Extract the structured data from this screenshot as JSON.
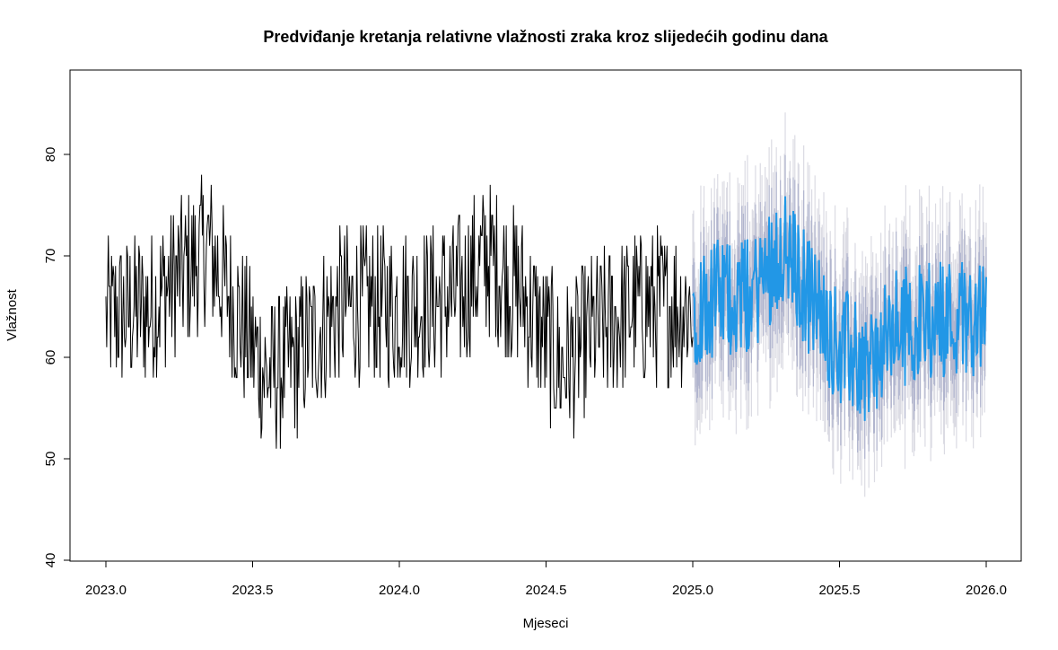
{
  "chart_data": {
    "type": "line",
    "title": "Predviđanje kretanja relativne vlažnosti zraka kroz slijedećih godinu dana",
    "xlabel": "Mjeseci",
    "ylabel": "Vlažnost",
    "xlim": [
      2023.0,
      2026.0
    ],
    "ylim": [
      40,
      85
    ],
    "x_ticks": [
      "2023.0",
      "2023.5",
      "2024.0",
      "2024.5",
      "2025.0",
      "2025.5",
      "2026.0"
    ],
    "y_ticks": [
      "40",
      "50",
      "60",
      "70",
      "80"
    ],
    "observed": {
      "x_start": 2023.0,
      "x_end": 2025.0,
      "level_profile": [
        [
          2023.0,
          64
        ],
        [
          2023.15,
          65
        ],
        [
          2023.35,
          71
        ],
        [
          2023.42,
          66
        ],
        [
          2023.55,
          58
        ],
        [
          2023.65,
          60
        ],
        [
          2023.8,
          65
        ],
        [
          2024.0,
          65
        ],
        [
          2024.2,
          66
        ],
        [
          2024.3,
          70
        ],
        [
          2024.42,
          66
        ],
        [
          2024.55,
          59
        ],
        [
          2024.65,
          62
        ],
        [
          2024.8,
          65
        ],
        [
          2025.0,
          65
        ]
      ],
      "amplitude": 8,
      "min": 50,
      "max": 80,
      "color": "#000000"
    },
    "forecast": {
      "x_start": 2025.0,
      "x_end": 2026.0,
      "mean_profile": [
        [
          2025.0,
          65
        ],
        [
          2025.1,
          66
        ],
        [
          2025.2,
          66
        ],
        [
          2025.3,
          71
        ],
        [
          2025.4,
          66
        ],
        [
          2025.5,
          61
        ],
        [
          2025.6,
          59
        ],
        [
          2025.7,
          63
        ],
        [
          2025.85,
          64
        ],
        [
          2026.0,
          64
        ]
      ],
      "amplitude": 6,
      "interval_80": 3.5,
      "interval_95": 6.5,
      "mean_color": "#2297e6",
      "band80_color": "#b1b5ce",
      "band95_color": "#dbdbe3"
    }
  }
}
